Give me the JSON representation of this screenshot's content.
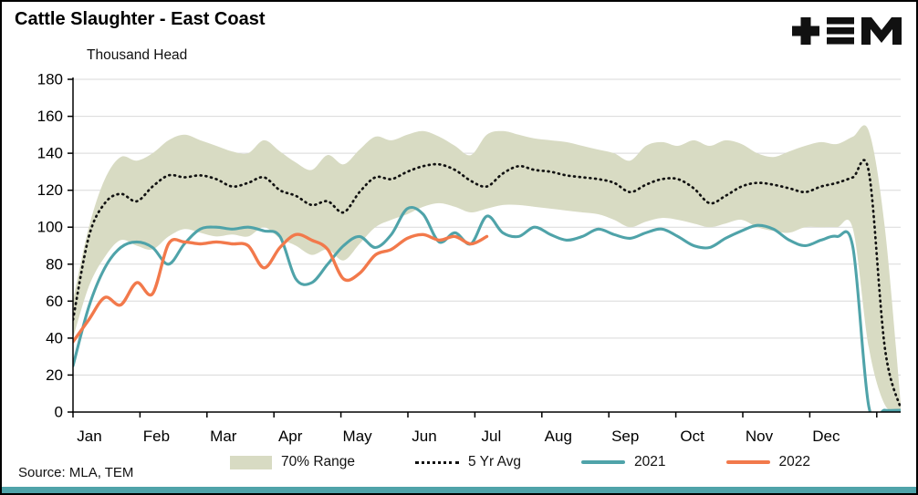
{
  "header": {
    "title": "Cattle Slaughter - East Coast",
    "subtitle": "Thousand Head"
  },
  "logo": {
    "name": "TEM"
  },
  "footer": {
    "source": "Source: MLA, TEM"
  },
  "legend": {
    "items": [
      {
        "label": "70% Range",
        "style": "band"
      },
      {
        "label": "5 Yr Avg",
        "style": "dotted"
      },
      {
        "label": "2021",
        "style": "line-teal"
      },
      {
        "label": "2022",
        "style": "line-orange"
      }
    ]
  },
  "colors": {
    "band": "#d8dbc3",
    "five_yr_avg": "#111111",
    "line_2021": "#4fa3a9",
    "line_2022": "#f2794b",
    "gridline": "#d9d9d9",
    "axis": "#000000",
    "accent_bar": "#4fa3a9",
    "logo": "#111111"
  },
  "chart_data": {
    "type": "line",
    "title": "Cattle Slaughter - East Coast",
    "ylabel": "Thousand Head",
    "xlabel": "",
    "ylim": [
      0,
      180
    ],
    "y_ticks": [
      0,
      20,
      40,
      60,
      80,
      100,
      120,
      140,
      160,
      180
    ],
    "grid": "horizontal",
    "legend_position": "bottom",
    "x_unit": "weeks (Jan - Dec)",
    "categories": [
      "Jan",
      "Feb",
      "Mar",
      "Apr",
      "May",
      "Jun",
      "Jul",
      "Aug",
      "Sep",
      "Oct",
      "Nov",
      "Dec"
    ],
    "series": [
      {
        "name": "70% Range",
        "type": "band",
        "upper": [
          60,
          100,
          126,
          138,
          136,
          140,
          147,
          150,
          147,
          144,
          141,
          140,
          147,
          141,
          135,
          131,
          139,
          134,
          142,
          149,
          147,
          150,
          152,
          149,
          144,
          139,
          150,
          152,
          150,
          148,
          147,
          146,
          144,
          142,
          140,
          136,
          144,
          146,
          144,
          147,
          144,
          147,
          145,
          140,
          138,
          141,
          144,
          146,
          145,
          149,
          152,
          100,
          5
        ],
        "lower": [
          40,
          68,
          84,
          93,
          90,
          88,
          95,
          99,
          97,
          95,
          96,
          95,
          100,
          94,
          90,
          85,
          88,
          82,
          91,
          100,
          104,
          107,
          111,
          113,
          111,
          108,
          110,
          112,
          112,
          111,
          110,
          109,
          108,
          107,
          104,
          100,
          103,
          105,
          104,
          102,
          100,
          102,
          104,
          100,
          98,
          97,
          100,
          100,
          100,
          99,
          35,
          4,
          0
        ]
      },
      {
        "name": "5 Yr Avg",
        "type": "dotted-line",
        "values": [
          50,
          95,
          113,
          118,
          114,
          122,
          128,
          127,
          128,
          126,
          122,
          124,
          127,
          120,
          117,
          112,
          114,
          108,
          119,
          127,
          126,
          130,
          133,
          134,
          131,
          125,
          122,
          129,
          133,
          131,
          130,
          128,
          127,
          126,
          124,
          119,
          123,
          126,
          126,
          121,
          113,
          117,
          122,
          124,
          123,
          121,
          119,
          122,
          124,
          127,
          130,
          35,
          2
        ]
      },
      {
        "name": "2021",
        "type": "line",
        "values": [
          25,
          57,
          78,
          89,
          92,
          89,
          80,
          91,
          99,
          100,
          99,
          100,
          98,
          95,
          72,
          70,
          80,
          90,
          95,
          89,
          96,
          110,
          107,
          92,
          97,
          91,
          106,
          97,
          95,
          100,
          96,
          93,
          95,
          99,
          96,
          94,
          97,
          99,
          95,
          90,
          89,
          94,
          98,
          101,
          99,
          93,
          90,
          93,
          95,
          89,
          3,
          1,
          1
        ]
      },
      {
        "name": "2022",
        "type": "line",
        "values": [
          38,
          50,
          62,
          58,
          70,
          64,
          91,
          92,
          91,
          92,
          91,
          90,
          78,
          89,
          96,
          93,
          88,
          72,
          75,
          85,
          88,
          94,
          96,
          93,
          95,
          91,
          95
        ]
      }
    ]
  }
}
